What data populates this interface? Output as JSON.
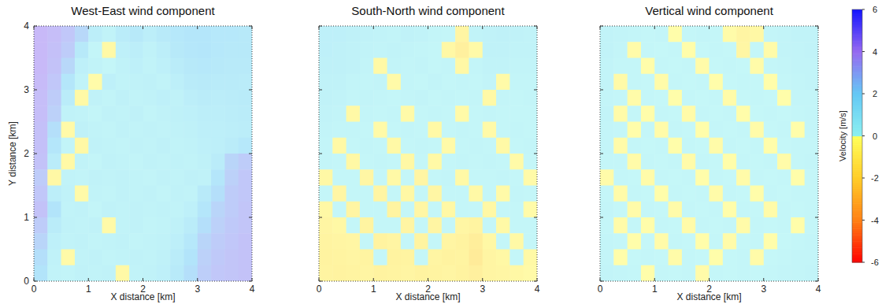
{
  "chart_data": [
    {
      "type": "heatmap",
      "title": "West-East wind component",
      "x_label": "X distance [km]",
      "y_label": "Y distance [km]",
      "xlim": [
        0,
        4
      ],
      "ylim": [
        0,
        4
      ],
      "xticks": [
        0,
        1,
        2,
        3,
        4
      ],
      "yticks": [
        0,
        1,
        2,
        3,
        4
      ],
      "tick_labels": true,
      "x": [
        0.125,
        0.375,
        0.625,
        0.875,
        1.125,
        1.375,
        1.625,
        1.875,
        2.125,
        2.375,
        2.625,
        2.875,
        3.125,
        3.375,
        3.625,
        3.875
      ],
      "y": [
        3.875,
        3.625,
        3.375,
        3.125,
        2.875,
        2.625,
        2.375,
        2.125,
        1.875,
        1.625,
        1.375,
        1.125,
        0.875,
        0.625,
        0.375,
        0.125
      ],
      "cells": [
        [
          3.8,
          3.6,
          3.2,
          2.5,
          1.0,
          0.5,
          1.2,
          1.5,
          1.0,
          1.4,
          1.6,
          1.8,
          1.8,
          1.6,
          1.6,
          1.5
        ],
        [
          3.8,
          3.5,
          3.0,
          1.5,
          0.3,
          -0.5,
          0.8,
          1.0,
          0.6,
          1.0,
          1.5,
          1.7,
          1.8,
          1.6,
          1.5,
          1.5
        ],
        [
          3.8,
          3.4,
          2.5,
          0.8,
          0.5,
          0.2,
          0.6,
          0.8,
          0.5,
          0.8,
          1.2,
          1.5,
          1.6,
          1.5,
          1.4,
          1.4
        ],
        [
          3.7,
          3.2,
          1.8,
          0.5,
          -0.3,
          0.8,
          0.5,
          0.6,
          0.7,
          0.5,
          0.9,
          1.3,
          1.4,
          1.3,
          1.3,
          1.2
        ],
        [
          3.6,
          3.0,
          1.2,
          -0.5,
          0.6,
          0.4,
          0.7,
          0.5,
          0.6,
          0.8,
          0.6,
          1.0,
          1.2,
          1.1,
          1.2,
          1.3
        ],
        [
          3.6,
          2.8,
          0.6,
          0.5,
          0.3,
          0.6,
          0.5,
          0.7,
          0.4,
          0.6,
          0.7,
          0.8,
          1.0,
          1.0,
          1.1,
          1.2
        ],
        [
          3.5,
          2.2,
          -0.4,
          0.7,
          0.5,
          0.4,
          0.6,
          0.5,
          0.6,
          0.5,
          0.6,
          0.7,
          0.9,
          0.9,
          1.0,
          1.1
        ],
        [
          3.5,
          1.8,
          0.4,
          -0.6,
          0.6,
          0.5,
          0.4,
          0.6,
          0.5,
          0.7,
          0.5,
          0.6,
          0.8,
          0.9,
          1.2,
          1.6
        ],
        [
          3.4,
          1.2,
          -0.5,
          0.5,
          0.3,
          0.6,
          0.5,
          0.4,
          0.6,
          0.5,
          0.6,
          0.5,
          0.7,
          1.2,
          2.6,
          3.0
        ],
        [
          3.0,
          -0.6,
          0.5,
          0.4,
          0.6,
          0.5,
          0.6,
          0.5,
          0.4,
          0.6,
          0.5,
          0.7,
          0.6,
          1.8,
          2.8,
          3.2
        ],
        [
          3.2,
          1.0,
          0.6,
          -0.4,
          0.5,
          0.4,
          0.6,
          0.5,
          0.6,
          0.4,
          0.6,
          0.5,
          1.4,
          2.2,
          3.0,
          3.2
        ],
        [
          3.4,
          2.0,
          0.5,
          0.6,
          0.3,
          0.6,
          0.5,
          0.6,
          0.5,
          0.6,
          0.5,
          0.8,
          1.8,
          2.6,
          3.0,
          3.3
        ],
        [
          3.0,
          1.2,
          0.6,
          0.5,
          0.6,
          -0.4,
          0.5,
          0.6,
          0.4,
          0.5,
          0.7,
          1.2,
          2.2,
          2.8,
          3.1,
          3.3
        ],
        [
          2.6,
          0.8,
          0.5,
          0.6,
          0.4,
          0.5,
          0.6,
          0.4,
          0.5,
          0.6,
          0.9,
          1.6,
          2.6,
          3.0,
          3.2,
          3.4
        ],
        [
          2.2,
          0.6,
          -0.4,
          0.5,
          0.6,
          0.4,
          0.5,
          0.6,
          0.5,
          0.7,
          1.2,
          2.0,
          2.8,
          3.1,
          3.3,
          3.4
        ],
        [
          2.0,
          0.5,
          0.4,
          0.6,
          0.5,
          0.6,
          -0.5,
          0.5,
          0.6,
          0.8,
          1.4,
          2.2,
          2.9,
          3.2,
          3.3,
          3.4
        ]
      ]
    },
    {
      "type": "heatmap",
      "title": "South-North wind component",
      "x_label": "X distance [km]",
      "xlim": [
        0,
        4
      ],
      "ylim": [
        0,
        4
      ],
      "xticks": [
        0,
        1,
        2,
        3,
        4
      ],
      "yticks": [
        0,
        1,
        2,
        3,
        4
      ],
      "tick_labels": "x",
      "x": [
        0.125,
        0.375,
        0.625,
        0.875,
        1.125,
        1.375,
        1.625,
        1.875,
        2.125,
        2.375,
        2.625,
        2.875,
        3.125,
        3.375,
        3.625,
        3.875
      ],
      "y": [
        3.875,
        3.625,
        3.375,
        3.125,
        2.875,
        2.625,
        2.375,
        2.125,
        1.875,
        1.625,
        1.375,
        1.125,
        0.875,
        0.625,
        0.375,
        0.125
      ],
      "cells": [
        [
          0.8,
          0.8,
          0.7,
          0.6,
          0.5,
          0.4,
          0.6,
          0.5,
          0.3,
          0.2,
          -0.8,
          0.5,
          0.6,
          0.7,
          0.6,
          0.5
        ],
        [
          0.8,
          0.7,
          0.6,
          0.5,
          0.4,
          0.5,
          0.4,
          0.3,
          0.2,
          -0.6,
          -1.2,
          -0.4,
          0.6,
          0.6,
          0.5,
          0.5
        ],
        [
          0.7,
          0.7,
          0.6,
          0.4,
          -0.5,
          0.4,
          0.3,
          0.4,
          0.2,
          0.3,
          -0.6,
          0.3,
          0.5,
          0.5,
          0.4,
          0.4
        ],
        [
          0.6,
          0.6,
          0.4,
          0.3,
          0.4,
          -0.4,
          0.3,
          0.2,
          0.4,
          0.2,
          0.3,
          0.2,
          0.4,
          -0.4,
          0.3,
          0.3
        ],
        [
          0.6,
          0.5,
          0.3,
          0.4,
          0.3,
          0.2,
          0.3,
          0.4,
          0.2,
          0.3,
          0.2,
          0.3,
          -0.5,
          0.3,
          0.2,
          0.3
        ],
        [
          0.5,
          0.4,
          -0.5,
          0.3,
          0.2,
          0.3,
          -0.4,
          0.2,
          0.3,
          0.2,
          -0.4,
          0.2,
          0.3,
          0.2,
          0.2,
          0.2
        ],
        [
          0.4,
          0.3,
          0.3,
          0.2,
          -0.4,
          0.2,
          0.3,
          0.2,
          -0.5,
          0.2,
          0.3,
          0.2,
          -0.4,
          0.2,
          0.3,
          0.2
        ],
        [
          0.3,
          -0.5,
          0.2,
          0.3,
          0.2,
          -0.5,
          0.2,
          0.3,
          0.2,
          -0.4,
          0.2,
          0.3,
          0.2,
          -0.5,
          0.2,
          0.3
        ],
        [
          0.3,
          0.2,
          -0.6,
          0.2,
          0.3,
          0.2,
          -0.6,
          0.2,
          -0.5,
          0.2,
          0.3,
          0.2,
          0.3,
          0.2,
          -0.4,
          0.2
        ],
        [
          -0.6,
          0.2,
          0.2,
          -0.7,
          0.2,
          -0.5,
          0.2,
          -0.8,
          0.2,
          0.3,
          -0.5,
          0.2,
          0.2,
          0.3,
          0.2,
          -0.4
        ],
        [
          0.2,
          -0.7,
          0.2,
          0.2,
          -0.8,
          0.2,
          -0.6,
          0.2,
          -0.7,
          0.2,
          0.2,
          -0.5,
          0.2,
          -0.4,
          0.3,
          0.2
        ],
        [
          -0.6,
          0.2,
          -0.8,
          0.2,
          0.2,
          -0.9,
          0.2,
          -0.7,
          0.2,
          -0.6,
          0.2,
          0.2,
          -0.6,
          0.2,
          0.2,
          -0.3
        ],
        [
          -0.8,
          -0.6,
          0.2,
          -0.9,
          0.2,
          0.2,
          -0.8,
          0.2,
          -0.8,
          0.2,
          -0.7,
          -0.9,
          0.2,
          -0.5,
          0.2,
          0.2
        ],
        [
          -0.9,
          -0.8,
          -0.7,
          0.2,
          -1.0,
          -0.8,
          0.2,
          -0.9,
          0.2,
          -0.8,
          -1.0,
          -1.4,
          -0.6,
          0.2,
          -0.5,
          0.2
        ],
        [
          -1.0,
          -0.9,
          -0.8,
          -0.9,
          0.2,
          -1.0,
          -0.9,
          0.2,
          -0.8,
          -1.0,
          -0.9,
          -1.6,
          -0.8,
          -0.6,
          0.2,
          -0.5
        ],
        [
          -0.9,
          -1.0,
          -0.9,
          -0.8,
          -1.0,
          -0.9,
          -0.8,
          -1.0,
          -0.9,
          -0.8,
          -1.0,
          -1.2,
          -0.8,
          -0.7,
          -0.6,
          -0.4
        ]
      ]
    },
    {
      "type": "heatmap",
      "title": "Vertical wind component",
      "x_label": "X distance [km]",
      "xlim": [
        0,
        4
      ],
      "ylim": [
        0,
        4
      ],
      "xticks": [
        0,
        1,
        2,
        3,
        4
      ],
      "yticks": [
        0,
        1,
        2,
        3,
        4
      ],
      "tick_labels": "x",
      "x": [
        0.125,
        0.375,
        0.625,
        0.875,
        1.125,
        1.375,
        1.625,
        1.875,
        2.125,
        2.375,
        2.625,
        2.875,
        3.125,
        3.375,
        3.625,
        3.875
      ],
      "y": [
        3.875,
        3.625,
        3.375,
        3.125,
        2.875,
        2.625,
        2.375,
        2.125,
        1.875,
        1.625,
        1.375,
        1.125,
        0.875,
        0.625,
        0.375,
        0.125
      ],
      "cells": [
        [
          0.5,
          0.4,
          0.3,
          0.2,
          0.3,
          -0.2,
          0.2,
          0.3,
          0.2,
          -0.3,
          -0.8,
          -0.6,
          0.3,
          0.4,
          0.5,
          0.5
        ],
        [
          0.5,
          0.3,
          -0.3,
          0.2,
          0.1,
          0.2,
          -0.2,
          0.1,
          0.2,
          0.1,
          -0.7,
          0.2,
          -0.3,
          0.4,
          0.4,
          0.5
        ],
        [
          0.4,
          0.2,
          0.2,
          -0.2,
          0.2,
          0.1,
          0.2,
          -0.3,
          0.1,
          0.2,
          0.1,
          -0.3,
          0.2,
          0.3,
          0.4,
          0.4
        ],
        [
          0.4,
          -0.4,
          0.2,
          0.1,
          -0.3,
          0.2,
          0.1,
          0.2,
          -0.2,
          0.1,
          0.2,
          0.1,
          -0.2,
          0.2,
          0.3,
          0.4
        ],
        [
          0.3,
          0.2,
          -0.3,
          0.2,
          0.1,
          -0.2,
          0.2,
          0.1,
          0.2,
          -0.3,
          0.1,
          0.2,
          0.1,
          -0.2,
          0.3,
          0.3
        ],
        [
          0.4,
          -0.3,
          0.2,
          -0.2,
          0.2,
          0.1,
          -0.3,
          0.2,
          0.1,
          0.2,
          -0.2,
          0.1,
          0.2,
          0.1,
          0.2,
          0.3
        ],
        [
          0.3,
          0.2,
          -0.2,
          0.2,
          -0.3,
          0.2,
          0.1,
          -0.2,
          0.2,
          0.1,
          0.2,
          -0.3,
          0.1,
          0.2,
          -0.2,
          0.3
        ],
        [
          0.3,
          -0.3,
          0.2,
          0.1,
          0.2,
          -0.2,
          0.2,
          0.1,
          -0.3,
          0.2,
          0.1,
          0.2,
          -0.2,
          0.1,
          0.2,
          0.2
        ],
        [
          0.2,
          0.2,
          -0.3,
          0.2,
          0.1,
          0.2,
          -0.3,
          0.2,
          0.1,
          -0.2,
          0.2,
          0.1,
          0.2,
          -0.3,
          0.2,
          0.3
        ],
        [
          -0.3,
          0.2,
          0.1,
          -0.3,
          0.2,
          0.1,
          0.2,
          -0.2,
          0.2,
          0.1,
          -0.3,
          0.2,
          0.1,
          0.2,
          -0.2,
          0.2
        ],
        [
          0.2,
          -0.3,
          0.2,
          0.1,
          -0.2,
          0.2,
          0.1,
          0.2,
          -0.3,
          0.2,
          0.1,
          -0.2,
          0.2,
          0.1,
          0.2,
          0.2
        ],
        [
          0.3,
          0.1,
          -0.3,
          0.2,
          0.1,
          -0.3,
          0.2,
          0.1,
          0.2,
          -0.2,
          0.2,
          0.1,
          -0.3,
          0.2,
          0.1,
          0.2
        ],
        [
          0.2,
          -0.3,
          0.2,
          -0.2,
          0.2,
          0.1,
          -0.3,
          0.2,
          0.1,
          0.2,
          -0.3,
          0.2,
          0.1,
          0.2,
          -0.2,
          0.2
        ],
        [
          0.3,
          0.2,
          -0.2,
          0.1,
          -0.3,
          0.2,
          0.1,
          -0.2,
          0.2,
          -0.3,
          0.1,
          0.2,
          -0.2,
          0.1,
          0.2,
          0.3
        ],
        [
          0.3,
          -0.2,
          0.1,
          0.2,
          0.1,
          -0.3,
          0.2,
          0.1,
          -0.2,
          0.1,
          0.2,
          -0.3,
          0.1,
          0.2,
          0.3,
          0.3
        ],
        [
          0.4,
          0.3,
          0.2,
          -0.2,
          0.2,
          0.1,
          0.2,
          -0.3,
          0.2,
          0.1,
          0.2,
          0.1,
          0.2,
          0.3,
          0.3,
          0.4
        ]
      ],
      "color_range": [
        -6,
        6
      ],
      "color_ticks": [
        -6,
        -4,
        -2,
        0,
        2,
        4,
        6
      ],
      "color_label": "Velocity [m/s]"
    }
  ]
}
